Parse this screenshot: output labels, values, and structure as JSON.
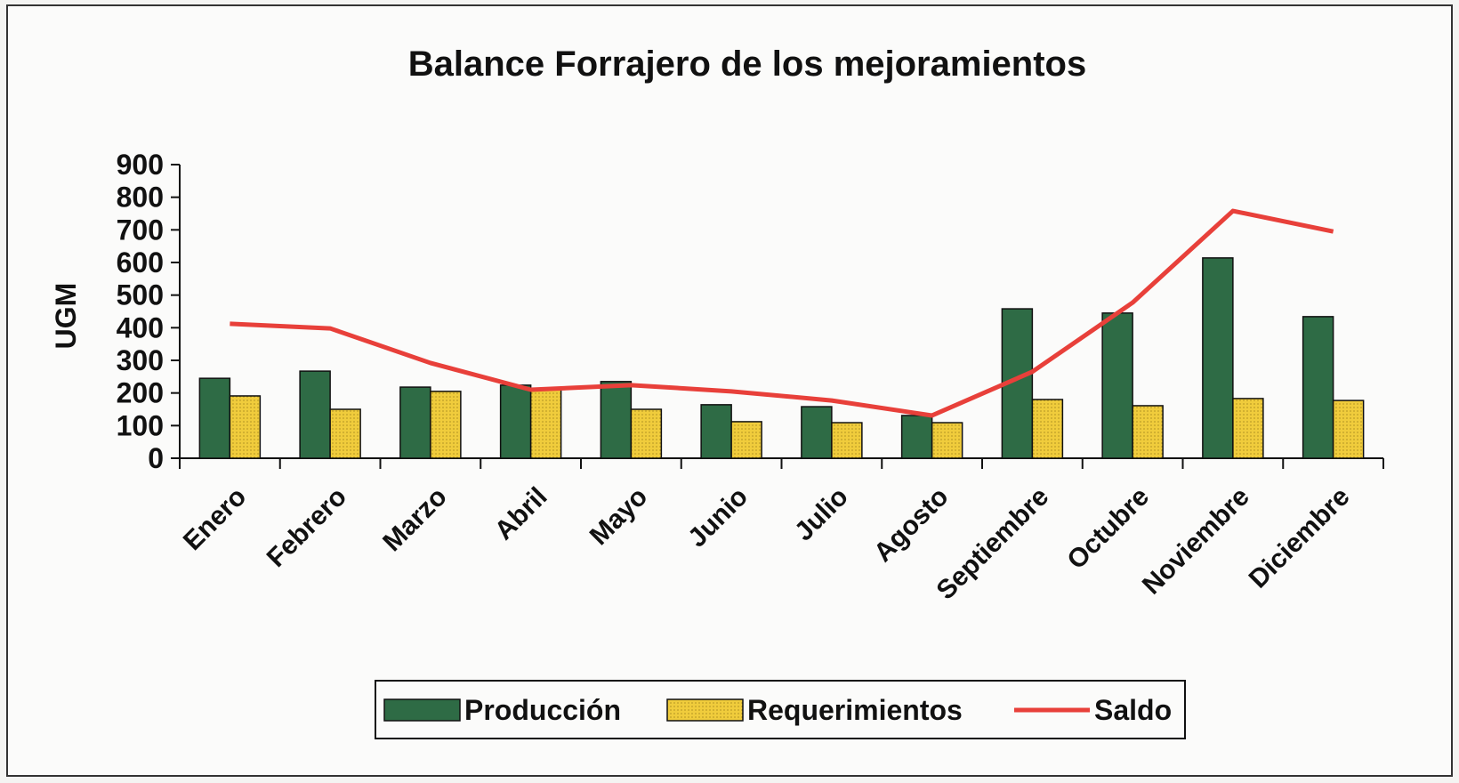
{
  "chart_data": {
    "type": "bar_line",
    "title": "Balance Forrajero de los mejoramientos",
    "y_label": "UGM",
    "categories": [
      "Enero",
      "Febrero",
      "Marzo",
      "Abril",
      "Mayo",
      "Junio",
      "Julio",
      "Agosto",
      "Septiembre",
      "Octubre",
      "Noviembre",
      "Diciembre"
    ],
    "series": [
      {
        "name": "Producción",
        "type": "bar",
        "color": "#2e6b45",
        "values": [
          245,
          267,
          218,
          224,
          235,
          164,
          158,
          131,
          458,
          445,
          614,
          434
        ]
      },
      {
        "name": "Requerimientos",
        "type": "bar",
        "color": "#f0cc3c",
        "values": [
          191,
          150,
          205,
          213,
          150,
          112,
          109,
          109,
          180,
          161,
          183,
          177
        ]
      },
      {
        "name": "Saldo",
        "type": "line",
        "color": "#e8403a",
        "values": [
          412,
          398,
          292,
          210,
          224,
          205,
          177,
          131,
          265,
          477,
          758,
          695
        ]
      }
    ],
    "ylim": [
      0,
      900
    ],
    "yticks": [
      0,
      100,
      200,
      300,
      400,
      500,
      600,
      700,
      800,
      900
    ],
    "legend": "bottom"
  }
}
